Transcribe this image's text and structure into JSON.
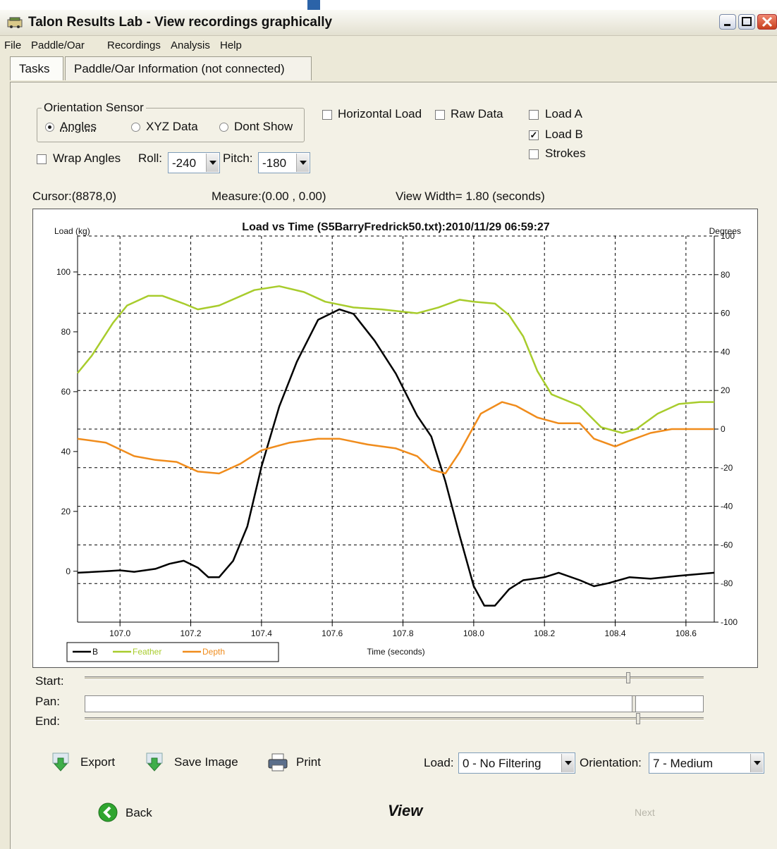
{
  "window": {
    "title": "Talon Results Lab - View recordings graphically"
  },
  "menu": [
    "File",
    "Paddle/Oar",
    "Recordings",
    "Analysis",
    "Help"
  ],
  "tabs": [
    "Tasks",
    "Paddle/Oar Information (not connected)"
  ],
  "orientation_sensor": {
    "title": "Orientation Sensor",
    "options": [
      "Angles",
      "XYZ Data",
      "Dont Show"
    ],
    "selected": "Angles"
  },
  "checkboxes": {
    "horizontal_load": {
      "label": "Horizontal Load",
      "checked": false
    },
    "raw_data": {
      "label": "Raw Data",
      "checked": false
    },
    "load_a": {
      "label": "Load A",
      "checked": false
    },
    "load_b": {
      "label": "Load B",
      "checked": true
    },
    "strokes": {
      "label": "Strokes",
      "checked": false
    },
    "wrap_angles": {
      "label": "Wrap Angles",
      "checked": false
    }
  },
  "roll": {
    "label": "Roll:",
    "value": "-240"
  },
  "pitch": {
    "label": "Pitch:",
    "value": "-180"
  },
  "status": {
    "cursor": "Cursor:(8878,0)",
    "measure": "Measure:(0.00 , 0.00)",
    "view_width": "View Width= 1.80 (seconds)"
  },
  "chart_data": {
    "type": "line",
    "title": "Load vs Time (S5BarryFredrick50.txt):2010/11/29 06:59:27",
    "xlabel": "Time (seconds)",
    "ylabel": "Load (kg)",
    "y2label": "Degrees",
    "xlim": [
      106.88,
      108.68
    ],
    "ylim": [
      -17,
      112
    ],
    "y2lim": [
      -100,
      100
    ],
    "x_ticks": [
      "107.0",
      "107.2",
      "107.4",
      "107.6",
      "107.8",
      "108.0",
      "108.2",
      "108.4",
      "108.6"
    ],
    "y_ticks": [
      "0",
      "20",
      "40",
      "60",
      "80",
      "100"
    ],
    "y2_ticks": [
      "-100",
      "-80",
      "-60",
      "-40",
      "-20",
      "0",
      "20",
      "40",
      "60",
      "80",
      "100"
    ],
    "grid": true,
    "legend_position": "bottom-left",
    "series": [
      {
        "name": "B",
        "axis": "left",
        "color": "#000000",
        "points": [
          [
            106.88,
            -0.5
          ],
          [
            106.96,
            0
          ],
          [
            107.0,
            0.3
          ],
          [
            107.04,
            -0.2
          ],
          [
            107.1,
            0.8
          ],
          [
            107.14,
            2.5
          ],
          [
            107.18,
            3.5
          ],
          [
            107.22,
            1.2
          ],
          [
            107.25,
            -2
          ],
          [
            107.28,
            -2
          ],
          [
            107.32,
            3.5
          ],
          [
            107.36,
            15
          ],
          [
            107.4,
            35
          ],
          [
            107.45,
            55
          ],
          [
            107.5,
            70
          ],
          [
            107.56,
            84
          ],
          [
            107.62,
            87.5
          ],
          [
            107.66,
            86
          ],
          [
            107.72,
            77
          ],
          [
            107.78,
            66
          ],
          [
            107.84,
            52
          ],
          [
            107.88,
            45
          ],
          [
            107.92,
            30
          ],
          [
            107.96,
            12
          ],
          [
            108.0,
            -5
          ],
          [
            108.03,
            -11.5
          ],
          [
            108.06,
            -11.5
          ],
          [
            108.1,
            -6
          ],
          [
            108.14,
            -3
          ],
          [
            108.2,
            -2
          ],
          [
            108.24,
            -0.5
          ],
          [
            108.3,
            -3
          ],
          [
            108.34,
            -5
          ],
          [
            108.38,
            -4
          ],
          [
            108.44,
            -2
          ],
          [
            108.5,
            -2.5
          ],
          [
            108.58,
            -1.5
          ],
          [
            108.68,
            -0.5
          ]
        ]
      },
      {
        "name": "Feather",
        "axis": "right",
        "color": "#a8cc2c",
        "points": [
          [
            106.88,
            29
          ],
          [
            106.92,
            38
          ],
          [
            106.98,
            55
          ],
          [
            107.02,
            64
          ],
          [
            107.08,
            69
          ],
          [
            107.12,
            69
          ],
          [
            107.18,
            65
          ],
          [
            107.22,
            62
          ],
          [
            107.28,
            64
          ],
          [
            107.38,
            72
          ],
          [
            107.45,
            74
          ],
          [
            107.52,
            71
          ],
          [
            107.58,
            66
          ],
          [
            107.66,
            63
          ],
          [
            107.74,
            62
          ],
          [
            107.84,
            60
          ],
          [
            107.9,
            63
          ],
          [
            107.96,
            67
          ],
          [
            108.0,
            66
          ],
          [
            108.06,
            65
          ],
          [
            108.1,
            59
          ],
          [
            108.14,
            48
          ],
          [
            108.18,
            30
          ],
          [
            108.22,
            18
          ],
          [
            108.3,
            12
          ],
          [
            108.36,
            1
          ],
          [
            108.42,
            -2
          ],
          [
            108.46,
            0
          ],
          [
            108.52,
            8
          ],
          [
            108.58,
            13
          ],
          [
            108.64,
            14
          ],
          [
            108.68,
            14
          ]
        ]
      },
      {
        "name": "Depth",
        "axis": "right",
        "color": "#f08c1c",
        "points": [
          [
            106.88,
            -5
          ],
          [
            106.96,
            -7
          ],
          [
            107.04,
            -14
          ],
          [
            107.1,
            -16
          ],
          [
            107.16,
            -17
          ],
          [
            107.22,
            -22
          ],
          [
            107.28,
            -23
          ],
          [
            107.34,
            -18
          ],
          [
            107.4,
            -11
          ],
          [
            107.48,
            -7
          ],
          [
            107.56,
            -5
          ],
          [
            107.62,
            -5
          ],
          [
            107.7,
            -8
          ],
          [
            107.78,
            -10
          ],
          [
            107.84,
            -14
          ],
          [
            107.88,
            -21
          ],
          [
            107.92,
            -23
          ],
          [
            107.96,
            -12
          ],
          [
            108.02,
            8
          ],
          [
            108.08,
            14
          ],
          [
            108.12,
            12
          ],
          [
            108.18,
            6
          ],
          [
            108.24,
            3
          ],
          [
            108.3,
            3
          ],
          [
            108.34,
            -5
          ],
          [
            108.4,
            -9
          ],
          [
            108.44,
            -6
          ],
          [
            108.5,
            -2
          ],
          [
            108.56,
            0
          ],
          [
            108.62,
            0
          ],
          [
            108.68,
            0
          ]
        ]
      }
    ]
  },
  "sliders": {
    "start": "Start:",
    "pan": "Pan:",
    "end": "End:"
  },
  "toolbar": {
    "export": "Export",
    "save_image": "Save Image",
    "print": "Print"
  },
  "filters": {
    "load_label": "Load:",
    "load_value": "0 - No Filtering",
    "orientation_label": "Orientation:",
    "orientation_value": "7 - Medium"
  },
  "nav": {
    "back": "Back",
    "view": "View",
    "next": "Next"
  },
  "colors": {
    "feather": "#a8cc2c",
    "depth": "#f08c1c",
    "b": "#000000",
    "back_green": "#2fa52f"
  }
}
